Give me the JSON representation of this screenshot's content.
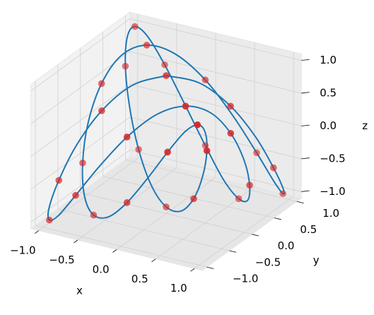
{
  "chart_data": {
    "type": "line3d",
    "xlabel": "x",
    "ylabel": "y",
    "zlabel": "z",
    "xlim": [
      -1.1,
      1.1
    ],
    "ylim": [
      -1.1,
      1.1
    ],
    "zlim": [
      -1.1,
      1.1
    ],
    "xticks": [
      {
        "value": -1,
        "label": "−1.0"
      },
      {
        "value": -0.5,
        "label": "−0.5"
      },
      {
        "value": 0,
        "label": "0.0"
      },
      0.5,
      {
        "value": 1,
        "label": "1.0"
      }
    ],
    "yticks": [
      {
        "value": -1,
        "label": "−1.0"
      },
      {
        "value": -0.5,
        "label": "−0.5"
      },
      {
        "value": 0,
        "label": "0.0"
      },
      0.5,
      {
        "value": 1,
        "label": "1.0"
      }
    ],
    "zticks": [
      {
        "value": -1,
        "label": "−1.0"
      },
      {
        "value": -0.5,
        "label": "−0.5"
      },
      {
        "value": 0,
        "label": "0.0"
      },
      0.5,
      {
        "value": 1,
        "label": "1.0"
      }
    ],
    "grid": true,
    "series": [
      {
        "type": "line",
        "color": "#1f77b4",
        "x": [
          0,
          0.31,
          0.59,
          0.81,
          0.95,
          1,
          0.95,
          0.81,
          0.59,
          0.31,
          0,
          -0.31,
          -0.59,
          -0.81,
          -0.95,
          -1,
          -0.95,
          -0.81,
          -0.59,
          -0.31,
          0,
          0.31,
          0.59,
          0.81,
          0.95,
          1,
          0.95,
          0.81,
          0.59,
          0.31,
          0,
          -0.31,
          -0.59,
          -0.81,
          -0.95,
          -1,
          -0.95,
          -0.81,
          -0.59,
          -0.31,
          0,
          0.31,
          0.59,
          0.81,
          0.95,
          1,
          0.95,
          0.81,
          0.59,
          0.31,
          0,
          -0.31,
          -0.59,
          -0.81,
          -0.95,
          -1,
          -0.95,
          -0.81,
          -0.59,
          -0.31,
          0
        ],
        "y": [
          0,
          0.21,
          0.41,
          0.59,
          0.74,
          0.87,
          0.95,
          0.99,
          0.99,
          0.95,
          0.87,
          0.74,
          0.59,
          0.41,
          0.21,
          0,
          -0.21,
          -0.41,
          -0.59,
          -0.74,
          -0.87,
          -0.95,
          -0.99,
          -0.99,
          -0.95,
          -0.87,
          -0.74,
          -0.59,
          -0.41,
          -0.21,
          0,
          0.21,
          0.41,
          0.59,
          0.74,
          0.87,
          0.95,
          0.99,
          0.99,
          0.95,
          0.87,
          0.74,
          0.59,
          0.41,
          0.21,
          0,
          -0.21,
          -0.41,
          -0.59,
          -0.74,
          -0.87,
          -0.95,
          -0.99,
          -0.99,
          -0.95,
          -0.87,
          -0.74,
          -0.59,
          -0.41,
          -0.21,
          0
        ],
        "z": [
          1,
          0.87,
          0.5,
          0,
          -0.5,
          -0.87,
          -1,
          -0.87,
          -0.5,
          0,
          0.5,
          0.87,
          1,
          0.87,
          0.5,
          0,
          -0.5,
          -0.87,
          -1,
          -0.87,
          -0.5,
          0,
          0.5,
          0.87,
          1,
          0.87,
          0.5,
          0,
          -0.5,
          -0.87,
          -1,
          -0.87,
          -0.5,
          0,
          0.5,
          0.87,
          1,
          0.87,
          0.5,
          0,
          -0.5,
          -0.87,
          -1,
          -0.87,
          -0.5,
          0,
          0.5,
          0.87,
          1,
          0.87,
          0.5,
          0,
          -0.5,
          -0.87,
          -1,
          -0.87,
          -0.5,
          0,
          0.5,
          0.87,
          1
        ]
      },
      {
        "type": "scatter",
        "color": "#d62728",
        "x": [
          0,
          0.59,
          0.95,
          0.95,
          0.59,
          0,
          -0.59,
          -0.95,
          -0.95,
          -0.59,
          0,
          0.59,
          0.95,
          0.95,
          0.59,
          0,
          -0.59,
          -0.95,
          -0.95,
          -0.59,
          0,
          0.59,
          0.95,
          0.95,
          0.59,
          0,
          -0.59,
          -0.95,
          -0.95,
          -0.59
        ],
        "y": [
          0,
          0.41,
          0.74,
          0.95,
          0.99,
          0.87,
          0.59,
          0.21,
          -0.21,
          -0.59,
          -0.87,
          -0.99,
          -0.95,
          -0.74,
          -0.41,
          0,
          0.41,
          0.74,
          0.95,
          0.99,
          0.87,
          0.59,
          0.21,
          -0.21,
          -0.59,
          -0.87,
          -0.99,
          -0.95,
          -0.74,
          -0.41
        ],
        "z": [
          1,
          0.5,
          -0.5,
          -1,
          -0.5,
          0.5,
          1,
          0.5,
          -0.5,
          -1,
          -0.5,
          0.5,
          1,
          0.5,
          -0.5,
          -1,
          -0.5,
          0.5,
          1,
          0.5,
          -0.5,
          -1,
          -0.5,
          0.5,
          1,
          0.5,
          -0.5,
          -1,
          -0.5,
          0.5
        ]
      }
    ]
  }
}
